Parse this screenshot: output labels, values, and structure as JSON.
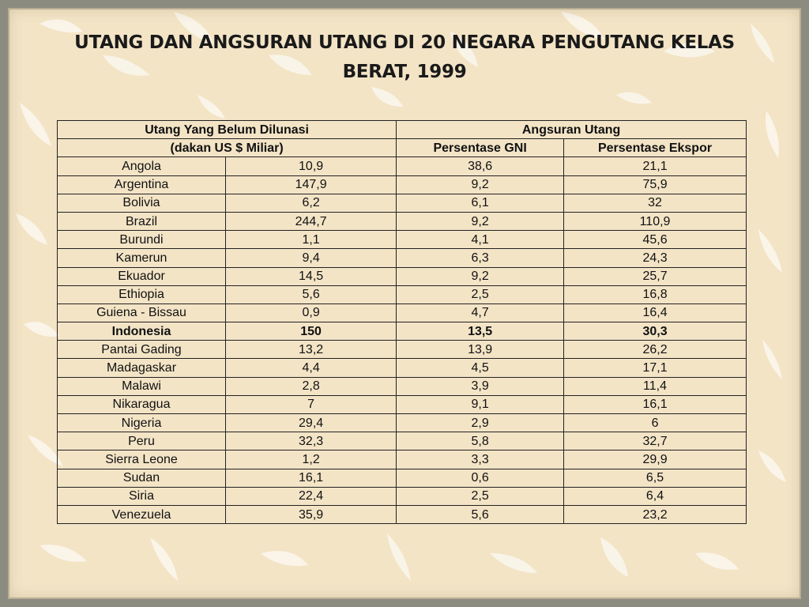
{
  "slide": {
    "title": "UTANG DAN ANGSURAN UTANG DI 20 NEGARA PENGUTANG KELAS BERAT, 1999"
  },
  "table": {
    "header_row1": {
      "debt": "Utang Yang Belum Dilunasi",
      "installment": "Angsuran Utang"
    },
    "header_row2": {
      "debt_unit": "(dakan US $ Miliar)",
      "gni": "Persentase GNI",
      "export": "Persentase Ekspor"
    },
    "rows": [
      {
        "country": "Angola",
        "debt": "10,9",
        "gni": "38,6",
        "export": "21,1"
      },
      {
        "country": "Argentina",
        "debt": "147,9",
        "gni": "9,2",
        "export": "75,9"
      },
      {
        "country": "Bolivia",
        "debt": "6,2",
        "gni": "6,1",
        "export": "32"
      },
      {
        "country": "Brazil",
        "debt": "244,7",
        "gni": "9,2",
        "export": "110,9"
      },
      {
        "country": "Burundi",
        "debt": "1,1",
        "gni": "4,1",
        "export": "45,6"
      },
      {
        "country": "Kamerun",
        "debt": "9,4",
        "gni": "6,3",
        "export": "24,3"
      },
      {
        "country": "Ekuador",
        "debt": "14,5",
        "gni": "9,2",
        "export": "25,7"
      },
      {
        "country": "Ethiopia",
        "debt": "5,6",
        "gni": "2,5",
        "export": "16,8"
      },
      {
        "country": "Guiena - Bissau",
        "debt": "0,9",
        "gni": "4,7",
        "export": "16,4"
      },
      {
        "country": "Indonesia",
        "debt": "150",
        "gni": "13,5",
        "export": "30,3"
      },
      {
        "country": "Pantai Gading",
        "debt": "13,2",
        "gni": "13,9",
        "export": "26,2"
      },
      {
        "country": "Madagaskar",
        "debt": "4,4",
        "gni": "4,5",
        "export": "17,1"
      },
      {
        "country": "Malawi",
        "debt": "2,8",
        "gni": "3,9",
        "export": "11,4"
      },
      {
        "country": "Nikaragua",
        "debt": "7",
        "gni": "9,1",
        "export": "16,1"
      },
      {
        "country": "Nigeria",
        "debt": "29,4",
        "gni": "2,9",
        "export": "6"
      },
      {
        "country": "Peru",
        "debt": "32,3",
        "gni": "5,8",
        "export": "32,7"
      },
      {
        "country": "Sierra Leone",
        "debt": "1,2",
        "gni": "3,3",
        "export": "29,9"
      },
      {
        "country": "Sudan",
        "debt": "16,1",
        "gni": "0,6",
        "export": "6,5"
      },
      {
        "country": "Siria",
        "debt": "22,4",
        "gni": "2,5",
        "export": "6,4"
      },
      {
        "country": "Venezuela",
        "debt": "35,9",
        "gni": "5,6",
        "export": "23,2"
      }
    ],
    "bold_row_country": "Indonesia"
  },
  "colors": {
    "background": "#f3e4c6",
    "frame": "#8c8b80",
    "petal": "#fbf7ee",
    "text": "#111111"
  }
}
